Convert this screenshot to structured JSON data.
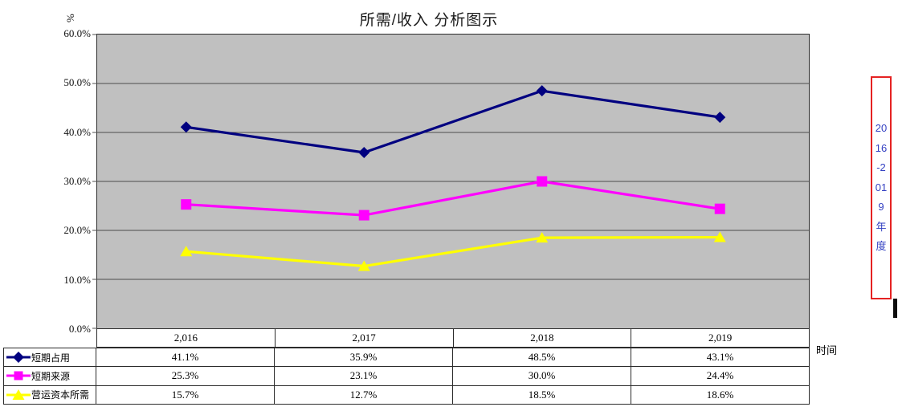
{
  "title": "所需/收入 分析图示",
  "y_axis_title": "%",
  "x_axis_title": "时间",
  "annotation": {
    "text": "2016-2019年度",
    "border_color": "#e52222",
    "text_color": "#3340c2"
  },
  "colors": {
    "plot_background": "#c0c0c0",
    "gridline": "#4d4d4d",
    "axis_border": "#2b2b2b",
    "series_1": "#000080",
    "series_2": "#ff00ff",
    "series_3": "#ffff00"
  },
  "chart_data": {
    "type": "line",
    "title": "所需/收入 分析图示",
    "xlabel": "时间",
    "ylabel": "%",
    "categories": [
      2016,
      2017,
      2018,
      2019
    ],
    "categories_display": [
      "2,016",
      "2,017",
      "2,018",
      "2,019"
    ],
    "series": [
      {
        "name": "短期占用",
        "color": "#000080",
        "marker": "diamond",
        "values": [
          41.1,
          35.9,
          48.5,
          43.1
        ],
        "values_display": [
          "41.1%",
          "35.9%",
          "48.5%",
          "43.1%"
        ]
      },
      {
        "name": "短期来源",
        "color": "#ff00ff",
        "marker": "square",
        "values": [
          25.3,
          23.1,
          30.0,
          24.4
        ],
        "values_display": [
          "25.3%",
          "23.1%",
          "30.0%",
          "24.4%"
        ]
      },
      {
        "name": "营运资本所需",
        "color": "#ffff00",
        "marker": "triangle",
        "values": [
          15.7,
          12.7,
          18.5,
          18.6
        ],
        "values_display": [
          "15.7%",
          "12.7%",
          "18.5%",
          "18.6%"
        ]
      }
    ],
    "ylim": [
      0,
      60
    ],
    "ytick_step": 10,
    "ytick_labels_top_to_bottom": [
      "60.0%",
      "50.0%",
      "40.0%",
      "30.0%",
      "20.0%",
      "10.0%",
      "0.0%"
    ],
    "grid": true,
    "legend_position": "table-left",
    "plot_area_background": "#c0c0c0"
  }
}
